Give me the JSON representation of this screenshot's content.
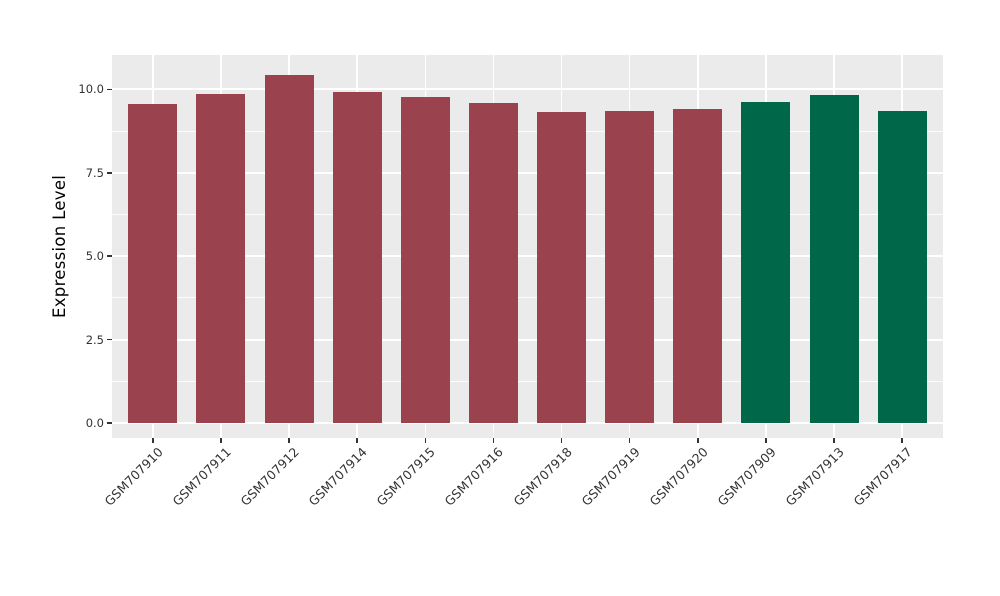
{
  "figure": {
    "background": "#ffffff",
    "panel_background": "#EBEBEB",
    "gridline_color": "#ffffff",
    "tick_color": "#333333"
  },
  "chart_data": {
    "type": "bar",
    "title": "",
    "xlabel": "",
    "ylabel": "Expression Level",
    "categories": [
      "GSM707910",
      "GSM707911",
      "GSM707912",
      "GSM707914",
      "GSM707915",
      "GSM707916",
      "GSM707918",
      "GSM707919",
      "GSM707920",
      "GSM707909",
      "GSM707913",
      "GSM707917"
    ],
    "values": [
      9.56,
      9.85,
      10.44,
      9.91,
      9.76,
      9.59,
      9.31,
      9.35,
      9.42,
      9.63,
      9.82,
      9.35
    ],
    "bar_colors": [
      "#9A424E",
      "#9A424E",
      "#9A424E",
      "#9A424E",
      "#9A424E",
      "#9A424E",
      "#9A424E",
      "#9A424E",
      "#9A424E",
      "#006749",
      "#006749",
      "#006749"
    ],
    "color_groups": [
      {
        "color": "#9A424E",
        "categories": [
          "GSM707910",
          "GSM707911",
          "GSM707912",
          "GSM707914",
          "GSM707915",
          "GSM707916",
          "GSM707918",
          "GSM707919",
          "GSM707920"
        ]
      },
      {
        "color": "#006749",
        "categories": [
          "GSM707909",
          "GSM707913",
          "GSM707917"
        ]
      }
    ],
    "yticks": {
      "values": [
        0,
        2.5,
        5,
        7.5,
        10
      ],
      "labels": [
        "0.0",
        "2.5",
        "5.0",
        "7.5",
        "10.0"
      ]
    },
    "y_minor_ticks": [
      1.25,
      3.75,
      6.25,
      8.75
    ],
    "ylim": [
      -0.45,
      11.03
    ],
    "grid": true,
    "legend_position": "none",
    "x_tick_rotation_deg": 45
  }
}
